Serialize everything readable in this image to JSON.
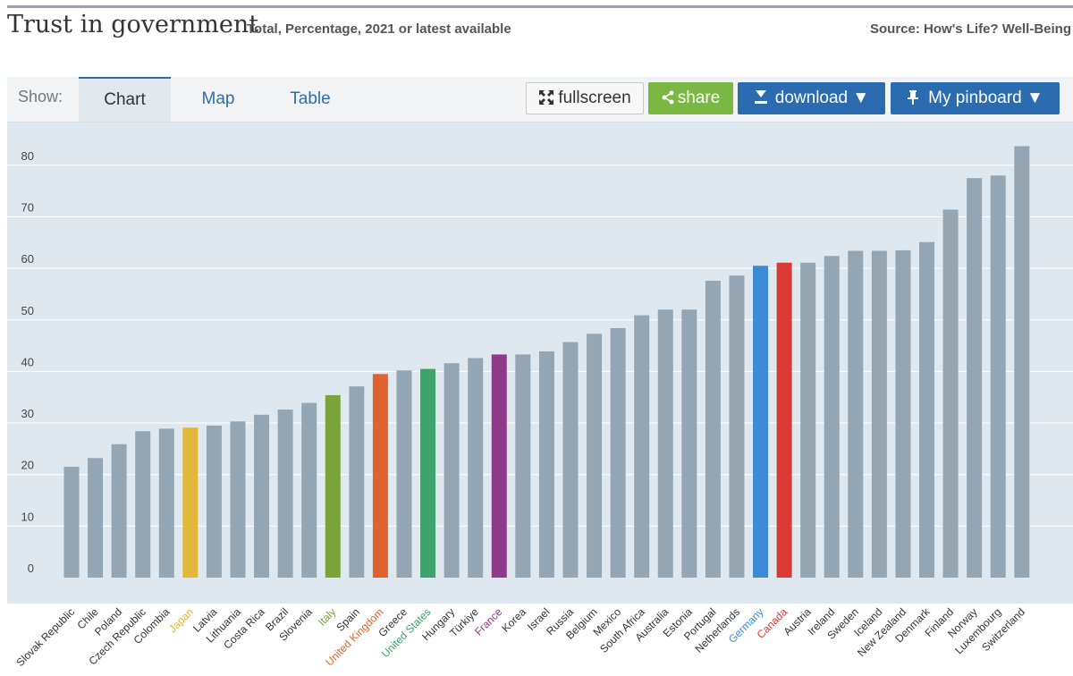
{
  "header": {
    "title": "Trust in government",
    "subtitle": "Total, Percentage, 2021 or latest available",
    "source": "Source: How's Life? Well-Being"
  },
  "toolbar": {
    "show_label": "Show:",
    "tabs": [
      "Chart",
      "Map",
      "Table"
    ],
    "active_tab": "Chart",
    "fullscreen_label": "fullscreen",
    "share_label": "share",
    "download_label": "download ▼",
    "pinboard_label": "My pinboard ▼",
    "icons": [
      "fullscreen-icon",
      "share-icon",
      "download-icon",
      "pin-icon"
    ]
  },
  "chart_data": {
    "type": "bar",
    "ylim": [
      0,
      85
    ],
    "yticks": [
      0,
      10,
      20,
      30,
      40,
      50,
      60,
      70,
      80
    ],
    "grid": true,
    "default_color": "#94a6b3",
    "categories": [
      "Slovak Republic",
      "Chile",
      "Poland",
      "Czech Republic",
      "Colombia",
      "Japan",
      "Latvia",
      "Lithuania",
      "Costa Rica",
      "Brazil",
      "Slovenia",
      "Italy",
      "Spain",
      "United Kingdom",
      "Greece",
      "United States",
      "Hungary",
      "Türkiye",
      "France",
      "Korea",
      "Israel",
      "Russia",
      "Belgium",
      "Mexico",
      "South Africa",
      "Australia",
      "Estonia",
      "Portugal",
      "Netherlands",
      "Germany",
      "Canada",
      "Austria",
      "Ireland",
      "Sweden",
      "Iceland",
      "New Zealand",
      "Denmark",
      "Finland",
      "Norway",
      "Luxembourg",
      "Switzerland"
    ],
    "values": [
      21.5,
      23.2,
      25.9,
      28.4,
      28.9,
      29.1,
      29.5,
      30.3,
      31.6,
      32.6,
      33.9,
      35.4,
      37.1,
      39.5,
      40.2,
      40.5,
      41.6,
      42.6,
      43.3,
      43.3,
      43.9,
      45.7,
      47.3,
      48.4,
      50.9,
      52.0,
      52.0,
      57.6,
      58.6,
      60.5,
      61.1,
      61.1,
      62.4,
      63.4,
      63.4,
      63.5,
      65.1,
      71.4,
      77.5,
      78.0,
      83.7
    ],
    "highlights": {
      "Japan": "#e3b83a",
      "Italy": "#7aa33a",
      "United Kingdom": "#e0622e",
      "United States": "#3fa36b",
      "France": "#8e3b8a",
      "Germany": "#3b8bd6",
      "Canada": "#d93a36"
    }
  }
}
